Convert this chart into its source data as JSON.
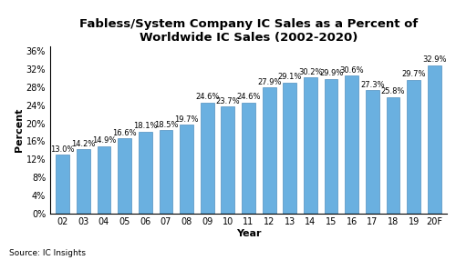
{
  "categories": [
    "02",
    "03",
    "04",
    "05",
    "06",
    "07",
    "08",
    "09",
    "10",
    "11",
    "12",
    "13",
    "14",
    "15",
    "16",
    "17",
    "18",
    "19",
    "20F"
  ],
  "values": [
    13.0,
    14.2,
    14.9,
    16.6,
    18.1,
    18.5,
    19.7,
    24.6,
    23.7,
    24.6,
    27.9,
    29.1,
    30.2,
    29.9,
    30.6,
    27.3,
    25.8,
    29.7,
    32.9
  ],
  "bar_color": "#6ab0e0",
  "bar_edgecolor": "#5090c0",
  "title_line1": "Fabless/System Company IC Sales as a Percent of",
  "title_line2": "Worldwide IC Sales (2002-2020)",
  "xlabel": "Year",
  "ylabel": "Percent",
  "ylim": [
    0,
    37
  ],
  "yticks": [
    0,
    4,
    8,
    12,
    16,
    20,
    24,
    28,
    32,
    36
  ],
  "source_text": "Source: IC Insights",
  "title_fontsize": 9.5,
  "label_fontsize": 6.0,
  "axis_label_fontsize": 8.0,
  "tick_fontsize": 7.0,
  "bar_width": 0.65
}
